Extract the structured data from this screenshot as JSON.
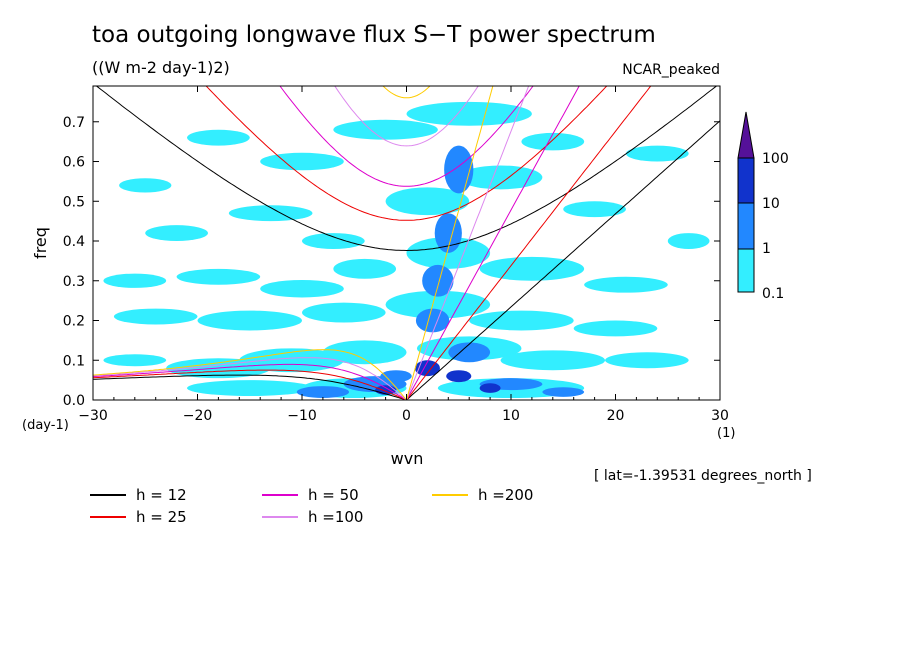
{
  "title": "toa outgoing longwave flux S−T power spectrum",
  "units": "((W m-2 day-1)2)",
  "tag": "NCAR_peaked",
  "lat_info": "[ lat=-1.39531 degrees_north ]",
  "chart_data": {
    "type": "heatmap",
    "xlabel": "wvn",
    "ylabel": "freq",
    "xunit": "(1)",
    "yunit": "(day-1)",
    "xlim": [
      -30,
      30
    ],
    "ylim": [
      0.0,
      0.79
    ],
    "xticks": [
      -30,
      -20,
      -10,
      0,
      10,
      20,
      30
    ],
    "xtick_labels": [
      "−30",
      "−20",
      "−10",
      "0",
      "10",
      "20",
      "30"
    ],
    "yticks": [
      0.0,
      0.1,
      0.2,
      0.3,
      0.4,
      0.5,
      0.6,
      0.7
    ],
    "ytick_labels": [
      "0.0",
      "0.1",
      "0.2",
      "0.3",
      "0.4",
      "0.5",
      "0.6",
      "0.7"
    ],
    "colorbar": {
      "levels": [
        "0.1",
        "1",
        "10",
        "100"
      ],
      "colors": [
        "#33eeff",
        "#2288ff",
        "#1133cc",
        "#551199"
      ],
      "extend": "max"
    },
    "blobs": [
      {
        "x": -25,
        "y": 0.54,
        "rx": 2.5,
        "ry": 0.018,
        "level": 0
      },
      {
        "x": -18,
        "y": 0.66,
        "rx": 3,
        "ry": 0.02,
        "level": 0
      },
      {
        "x": -10,
        "y": 0.6,
        "rx": 4,
        "ry": 0.022,
        "level": 0
      },
      {
        "x": -2,
        "y": 0.68,
        "rx": 5,
        "ry": 0.025,
        "level": 0
      },
      {
        "x": 6,
        "y": 0.72,
        "rx": 6,
        "ry": 0.03,
        "level": 0
      },
      {
        "x": 14,
        "y": 0.65,
        "rx": 3,
        "ry": 0.022,
        "level": 0
      },
      {
        "x": 24,
        "y": 0.62,
        "rx": 3,
        "ry": 0.02,
        "level": 0
      },
      {
        "x": -22,
        "y": 0.42,
        "rx": 3,
        "ry": 0.02,
        "level": 0
      },
      {
        "x": -13,
        "y": 0.47,
        "rx": 4,
        "ry": 0.02,
        "level": 0
      },
      {
        "x": -7,
        "y": 0.4,
        "rx": 3,
        "ry": 0.02,
        "level": 0
      },
      {
        "x": 2,
        "y": 0.5,
        "rx": 4,
        "ry": 0.035,
        "level": 0
      },
      {
        "x": 9,
        "y": 0.56,
        "rx": 4,
        "ry": 0.03,
        "level": 0
      },
      {
        "x": 18,
        "y": 0.48,
        "rx": 3,
        "ry": 0.02,
        "level": 0
      },
      {
        "x": 27,
        "y": 0.4,
        "rx": 2,
        "ry": 0.02,
        "level": 0
      },
      {
        "x": -26,
        "y": 0.3,
        "rx": 3,
        "ry": 0.018,
        "level": 0
      },
      {
        "x": -18,
        "y": 0.31,
        "rx": 4,
        "ry": 0.02,
        "level": 0
      },
      {
        "x": -10,
        "y": 0.28,
        "rx": 4,
        "ry": 0.022,
        "level": 0
      },
      {
        "x": -4,
        "y": 0.33,
        "rx": 3,
        "ry": 0.025,
        "level": 0
      },
      {
        "x": 4,
        "y": 0.37,
        "rx": 4,
        "ry": 0.04,
        "level": 0
      },
      {
        "x": 12,
        "y": 0.33,
        "rx": 5,
        "ry": 0.03,
        "level": 0
      },
      {
        "x": 21,
        "y": 0.29,
        "rx": 4,
        "ry": 0.02,
        "level": 0
      },
      {
        "x": -24,
        "y": 0.21,
        "rx": 4,
        "ry": 0.02,
        "level": 0
      },
      {
        "x": -15,
        "y": 0.2,
        "rx": 5,
        "ry": 0.025,
        "level": 0
      },
      {
        "x": -6,
        "y": 0.22,
        "rx": 4,
        "ry": 0.025,
        "level": 0
      },
      {
        "x": 3,
        "y": 0.24,
        "rx": 5,
        "ry": 0.035,
        "level": 0
      },
      {
        "x": 11,
        "y": 0.2,
        "rx": 5,
        "ry": 0.025,
        "level": 0
      },
      {
        "x": 20,
        "y": 0.18,
        "rx": 4,
        "ry": 0.02,
        "level": 0
      },
      {
        "x": -26,
        "y": 0.1,
        "rx": 3,
        "ry": 0.015,
        "level": 0
      },
      {
        "x": -18,
        "y": 0.08,
        "rx": 5,
        "ry": 0.025,
        "level": 0
      },
      {
        "x": -11,
        "y": 0.1,
        "rx": 5,
        "ry": 0.03,
        "level": 0
      },
      {
        "x": -4,
        "y": 0.12,
        "rx": 4,
        "ry": 0.03,
        "level": 0
      },
      {
        "x": 6,
        "y": 0.13,
        "rx": 5,
        "ry": 0.03,
        "level": 0
      },
      {
        "x": 14,
        "y": 0.1,
        "rx": 5,
        "ry": 0.025,
        "level": 0
      },
      {
        "x": 23,
        "y": 0.1,
        "rx": 4,
        "ry": 0.02,
        "level": 0
      },
      {
        "x": -15,
        "y": 0.03,
        "rx": 6,
        "ry": 0.02,
        "level": 0
      },
      {
        "x": -5,
        "y": 0.03,
        "rx": 5,
        "ry": 0.025,
        "level": 0
      },
      {
        "x": 10,
        "y": 0.03,
        "rx": 7,
        "ry": 0.025,
        "level": 0
      },
      {
        "x": 5,
        "y": 0.58,
        "rx": 1.4,
        "ry": 0.06,
        "level": 1
      },
      {
        "x": 4,
        "y": 0.42,
        "rx": 1.3,
        "ry": 0.05,
        "level": 1
      },
      {
        "x": 3,
        "y": 0.3,
        "rx": 1.5,
        "ry": 0.04,
        "level": 1
      },
      {
        "x": 2.5,
        "y": 0.2,
        "rx": 1.6,
        "ry": 0.03,
        "level": 1
      },
      {
        "x": 6,
        "y": 0.12,
        "rx": 2,
        "ry": 0.025,
        "level": 1
      },
      {
        "x": 10,
        "y": 0.04,
        "rx": 3,
        "ry": 0.015,
        "level": 1
      },
      {
        "x": 15,
        "y": 0.02,
        "rx": 2,
        "ry": 0.012,
        "level": 1
      },
      {
        "x": -3,
        "y": 0.04,
        "rx": 3,
        "ry": 0.02,
        "level": 1
      },
      {
        "x": -8,
        "y": 0.02,
        "rx": 2.5,
        "ry": 0.015,
        "level": 1
      },
      {
        "x": -1,
        "y": 0.06,
        "rx": 1.5,
        "ry": 0.015,
        "level": 1
      },
      {
        "x": 2,
        "y": 0.08,
        "rx": 1.2,
        "ry": 0.02,
        "level": 2
      },
      {
        "x": 5,
        "y": 0.06,
        "rx": 1.2,
        "ry": 0.015,
        "level": 2
      },
      {
        "x": 8,
        "y": 0.03,
        "rx": 1,
        "ry": 0.012,
        "level": 2
      },
      {
        "x": -2,
        "y": 0.025,
        "rx": 1,
        "ry": 0.012,
        "level": 2
      }
    ],
    "curves": {
      "equivalent_depths": [
        12,
        25,
        50,
        100,
        200
      ],
      "legend": [
        {
          "label": "h = 12",
          "color": "#000000"
        },
        {
          "label": "h = 25",
          "color": "#ee0000"
        },
        {
          "label": "h = 50",
          "color": "#dd00cc"
        },
        {
          "label": "h =100",
          "color": "#dd88ee"
        },
        {
          "label": "h =200",
          "color": "#ffcc00"
        }
      ]
    }
  }
}
